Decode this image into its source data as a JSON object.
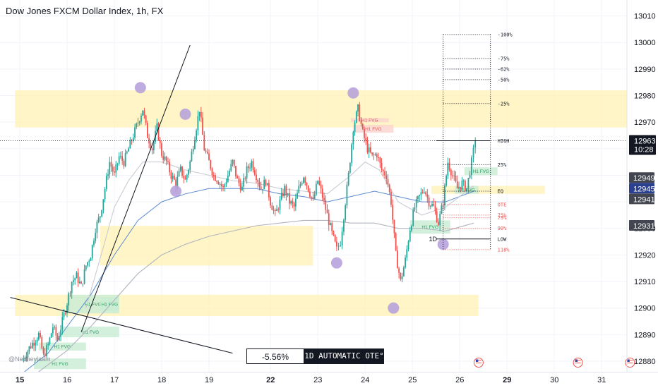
{
  "title": "Dow Jones FXCM Dollar Index, 1h, FX",
  "watermark": "@Nepheylaam",
  "bottom_box": {
    "percent": "-5.56%",
    "label": "1D AUTOMATIC OTE°"
  },
  "colors": {
    "up": "#26a69a",
    "down": "#ef5350",
    "zone": "#fff2b3",
    "fvg_green": "#c8ecd4",
    "fvg_red": "#fbd3cf",
    "ma_blue": "#5b8bd0",
    "ma_grey": "#b2b5be",
    "marker": "#b39ddb",
    "price_tag": "#131722",
    "price_blue": "#2a3f8f"
  },
  "chart_data": {
    "type": "candlestick",
    "title": "Dow Jones FXCM Dollar Index, 1h, FX",
    "ylim": [
      12876,
      13016
    ],
    "y_ticks": [
      12880,
      12890,
      12900,
      12910,
      12920,
      12930,
      12940,
      12950,
      12960,
      12970,
      12980,
      12990,
      13000,
      13010
    ],
    "x_ticks": [
      {
        "label": "15",
        "t": 0,
        "bold": true
      },
      {
        "label": "16",
        "t": 10
      },
      {
        "label": "17",
        "t": 20
      },
      {
        "label": "18",
        "t": 30
      },
      {
        "label": "19",
        "t": 40
      },
      {
        "label": "22",
        "t": 53,
        "bold": true
      },
      {
        "label": "23",
        "t": 63
      },
      {
        "label": "24",
        "t": 73
      },
      {
        "label": "25",
        "t": 83
      },
      {
        "label": "26",
        "t": 93
      },
      {
        "label": "29",
        "t": 103,
        "bold": true
      },
      {
        "label": "30",
        "t": 113
      },
      {
        "label": "31",
        "t": 123
      }
    ],
    "price_path": [
      [
        0.5,
        12880
      ],
      [
        2,
        12885
      ],
      [
        4,
        12890
      ],
      [
        5,
        12882
      ],
      [
        6,
        12886
      ],
      [
        7,
        12893
      ],
      [
        8,
        12888
      ],
      [
        9,
        12895
      ],
      [
        10,
        12902
      ],
      [
        11,
        12910
      ],
      [
        12,
        12912
      ],
      [
        13,
        12908
      ],
      [
        14,
        12916
      ],
      [
        15,
        12920
      ],
      [
        16,
        12930
      ],
      [
        17,
        12935
      ],
      [
        18,
        12945
      ],
      [
        19,
        12955
      ],
      [
        20,
        12950
      ],
      [
        21,
        12957
      ],
      [
        22,
        12955
      ],
      [
        23,
        12960
      ],
      [
        24,
        12965
      ],
      [
        25,
        12970
      ],
      [
        26,
        12975
      ],
      [
        27,
        12965
      ],
      [
        28,
        12960
      ],
      [
        29,
        12968
      ],
      [
        30,
        12958
      ],
      [
        31,
        12955
      ],
      [
        32,
        12950
      ],
      [
        33,
        12947
      ],
      [
        34,
        12952
      ],
      [
        35,
        12948
      ],
      [
        36,
        12955
      ],
      [
        37,
        12965
      ],
      [
        38,
        12975
      ],
      [
        39,
        12960
      ],
      [
        40,
        12955
      ],
      [
        41,
        12950
      ],
      [
        42,
        12948
      ],
      [
        43,
        12945
      ],
      [
        44,
        12950
      ],
      [
        45,
        12955
      ],
      [
        46,
        12948
      ],
      [
        47,
        12945
      ],
      [
        48,
        12952
      ],
      [
        49,
        12955
      ],
      [
        50,
        12950
      ],
      [
        51,
        12945
      ],
      [
        52,
        12948
      ],
      [
        53,
        12940
      ],
      [
        54,
        12935
      ],
      [
        55,
        12940
      ],
      [
        56,
        12945
      ],
      [
        57,
        12940
      ],
      [
        58,
        12938
      ],
      [
        59,
        12945
      ],
      [
        60,
        12950
      ],
      [
        61,
        12945
      ],
      [
        62,
        12940
      ],
      [
        63,
        12948
      ],
      [
        64,
        12942
      ],
      [
        65,
        12935
      ],
      [
        66,
        12928
      ],
      [
        67,
        12922
      ],
      [
        67.8,
        12925
      ],
      [
        68.5,
        12935
      ],
      [
        69.5,
        12950
      ],
      [
        70.5,
        12968
      ],
      [
        71.5,
        12975
      ],
      [
        72.5,
        12966
      ],
      [
        73.5,
        12960
      ],
      [
        74.5,
        12957
      ],
      [
        75.5,
        12958
      ],
      [
        76.5,
        12952
      ],
      [
        77.5,
        12950
      ],
      [
        78.5,
        12940
      ],
      [
        79.5,
        12920
      ],
      [
        80.5,
        12910
      ],
      [
        81.5,
        12918
      ],
      [
        82.5,
        12930
      ],
      [
        83.5,
        12938
      ],
      [
        84.5,
        12942
      ],
      [
        85.5,
        12945
      ],
      [
        86.5,
        12940
      ],
      [
        87.5,
        12938
      ],
      [
        88.5,
        12932
      ],
      [
        89.5,
        12940
      ],
      [
        90.5,
        12955
      ],
      [
        91.5,
        12950
      ],
      [
        92.5,
        12945
      ],
      [
        93.5,
        12947
      ],
      [
        94.5,
        12945
      ],
      [
        95.5,
        12955
      ],
      [
        96.3,
        12963
      ]
    ],
    "moving_averages": [
      {
        "name": "blue",
        "points": [
          [
            1,
            12876
          ],
          [
            6,
            12883
          ],
          [
            10,
            12893
          ],
          [
            15,
            12905
          ],
          [
            20,
            12920
          ],
          [
            25,
            12933
          ],
          [
            30,
            12940
          ],
          [
            35,
            12943
          ],
          [
            40,
            12945
          ],
          [
            45,
            12945
          ],
          [
            50,
            12945
          ],
          [
            55,
            12943
          ],
          [
            60,
            12942
          ],
          [
            65,
            12940
          ],
          [
            70,
            12942
          ],
          [
            75,
            12944
          ],
          [
            80,
            12942
          ],
          [
            85,
            12940
          ],
          [
            90,
            12940
          ],
          [
            96,
            12944
          ]
        ]
      },
      {
        "name": "grey",
        "points": [
          [
            4,
            12876
          ],
          [
            10,
            12884
          ],
          [
            15,
            12893
          ],
          [
            20,
            12903
          ],
          [
            25,
            12913
          ],
          [
            30,
            12920
          ],
          [
            35,
            12924
          ],
          [
            40,
            12927
          ],
          [
            45,
            12929
          ],
          [
            50,
            12931
          ],
          [
            55,
            12932
          ],
          [
            60,
            12933
          ],
          [
            65,
            12933
          ],
          [
            70,
            12932
          ],
          [
            75,
            12932
          ],
          [
            80,
            12930
          ],
          [
            85,
            12930
          ],
          [
            90,
            12929
          ],
          [
            96,
            12932
          ]
        ]
      },
      {
        "name": "grey-fast",
        "points": [
          [
            14,
            12900
          ],
          [
            18,
            12925
          ],
          [
            20,
            12938
          ],
          [
            23,
            12948
          ],
          [
            26,
            12955
          ],
          [
            30,
            12955
          ],
          [
            35,
            12952
          ],
          [
            40,
            12950
          ],
          [
            45,
            12948
          ],
          [
            50,
            12947
          ],
          [
            55,
            12945
          ],
          [
            60,
            12944
          ],
          [
            65,
            12943
          ],
          [
            70,
            12950
          ],
          [
            73,
            12955
          ],
          [
            76,
            12952
          ],
          [
            80,
            12940
          ],
          [
            85,
            12935
          ],
          [
            90,
            12938
          ],
          [
            96,
            12946
          ]
        ]
      }
    ],
    "zones": [
      {
        "t0": -1,
        "t1": 129,
        "y0": 12968,
        "y1": 12982
      },
      {
        "t0": 17,
        "t1": 62,
        "y0": 12916,
        "y1": 12931
      },
      {
        "t0": -1,
        "t1": 97,
        "y0": 12897,
        "y1": 12905
      },
      {
        "t0": 87,
        "t1": 111,
        "y0": 12943,
        "y1": 12946
      }
    ],
    "fvg_boxes": [
      {
        "label": "H1 FVG",
        "color": "red",
        "t0": 70,
        "t1": 78,
        "y0": 12970,
        "y1": 12971.5
      },
      {
        "label": "H1 FVG",
        "color": "red",
        "t0": 70.5,
        "t1": 79,
        "y0": 12966,
        "y1": 12969
      },
      {
        "label": "H1 FVG",
        "color": "green",
        "t0": 94,
        "t1": 101,
        "y0": 12950,
        "y1": 12953
      },
      {
        "label": "H1 FVG",
        "color": "green",
        "t0": 92,
        "t1": 97,
        "y0": 12943,
        "y1": 12946
      },
      {
        "label": "H1 FVG",
        "color": "green",
        "t0": 82.5,
        "t1": 91,
        "y0": 12928,
        "y1": 12933
      },
      {
        "label": "H1 FVG",
        "color": "green",
        "t0": 10,
        "t1": 21,
        "y0": 12898,
        "y1": 12905
      },
      {
        "label": "H1 FVG",
        "color": "green",
        "t0": 17,
        "t1": 21,
        "y0": 12899,
        "y1": 12904
      },
      {
        "label": "H1 FVG",
        "color": "green",
        "t0": 9,
        "t1": 21,
        "y0": 12889,
        "y1": 12893
      },
      {
        "label": "H1 FVG",
        "color": "green",
        "t0": 4,
        "t1": 14,
        "y0": 12884,
        "y1": 12887
      },
      {
        "label": "H1 FVG",
        "color": "green",
        "t0": 3,
        "t1": 14,
        "y0": 12877,
        "y1": 12881
      }
    ],
    "ote_levels": [
      {
        "label": "-100%",
        "value": 13003,
        "color": "#131722",
        "style": "dotted"
      },
      {
        "label": "-75%",
        "value": 12994,
        "color": "#131722",
        "style": "dotted"
      },
      {
        "label": "-62%",
        "value": 12990,
        "color": "#131722",
        "style": "dotted"
      },
      {
        "label": "-50%",
        "value": 12986,
        "color": "#131722",
        "style": "dotted"
      },
      {
        "label": "-25%",
        "value": 12977,
        "color": "#131722",
        "style": "dotted"
      },
      {
        "label": "HIGH",
        "value": 12963,
        "color": "#131722",
        "style": "solid"
      },
      {
        "label": "25%",
        "value": 12954,
        "color": "#131722",
        "style": "dotted"
      },
      {
        "label": "EQ",
        "value": 12944,
        "color": "#131722",
        "style": "dotted"
      },
      {
        "label": "OTE",
        "value": 12939,
        "color": "#ef5350",
        "style": "dotted"
      },
      {
        "label": "75%",
        "value": 12935,
        "color": "#ef5350",
        "style": "dotted"
      },
      {
        "label": "79%",
        "value": 12934,
        "color": "#ef5350",
        "style": "dotted"
      },
      {
        "label": "90%",
        "value": 12930,
        "color": "#ef5350",
        "style": "dotted"
      },
      {
        "label": "LOW",
        "value": 12926,
        "color": "#131722",
        "style": "solid"
      },
      {
        "label": "118%",
        "value": 12922,
        "color": "#ef5350",
        "style": "dotted"
      }
    ],
    "ote_timeframe_label": "1D",
    "markers": [
      {
        "t": 25.5,
        "v": 12983
      },
      {
        "t": 35,
        "v": 12973
      },
      {
        "t": 33,
        "v": 12944
      },
      {
        "t": 70.5,
        "v": 12981
      },
      {
        "t": 67,
        "v": 12917
      },
      {
        "t": 79,
        "v": 12900
      },
      {
        "t": 89.5,
        "v": 12924
      }
    ],
    "trend_lines": [
      {
        "p0": [
          -2,
          12904
        ],
        "p1": [
          45,
          12883
        ]
      },
      {
        "p0": [
          13,
          12891
        ],
        "p1": [
          36,
          12999
        ]
      }
    ],
    "current_price": {
      "value": 12963,
      "label": "12963",
      "countdown": "10:28"
    },
    "price_labels": [
      {
        "value": 12949,
        "label": "12949",
        "style": "grey"
      },
      {
        "value": 12945,
        "label": "12945",
        "style": "blue"
      },
      {
        "value": 12941,
        "label": "12941",
        "style": "grey"
      },
      {
        "value": 12931,
        "label": "12931",
        "style": "grey"
      }
    ],
    "event_icons_t": [
      97,
      118,
      129
    ]
  }
}
